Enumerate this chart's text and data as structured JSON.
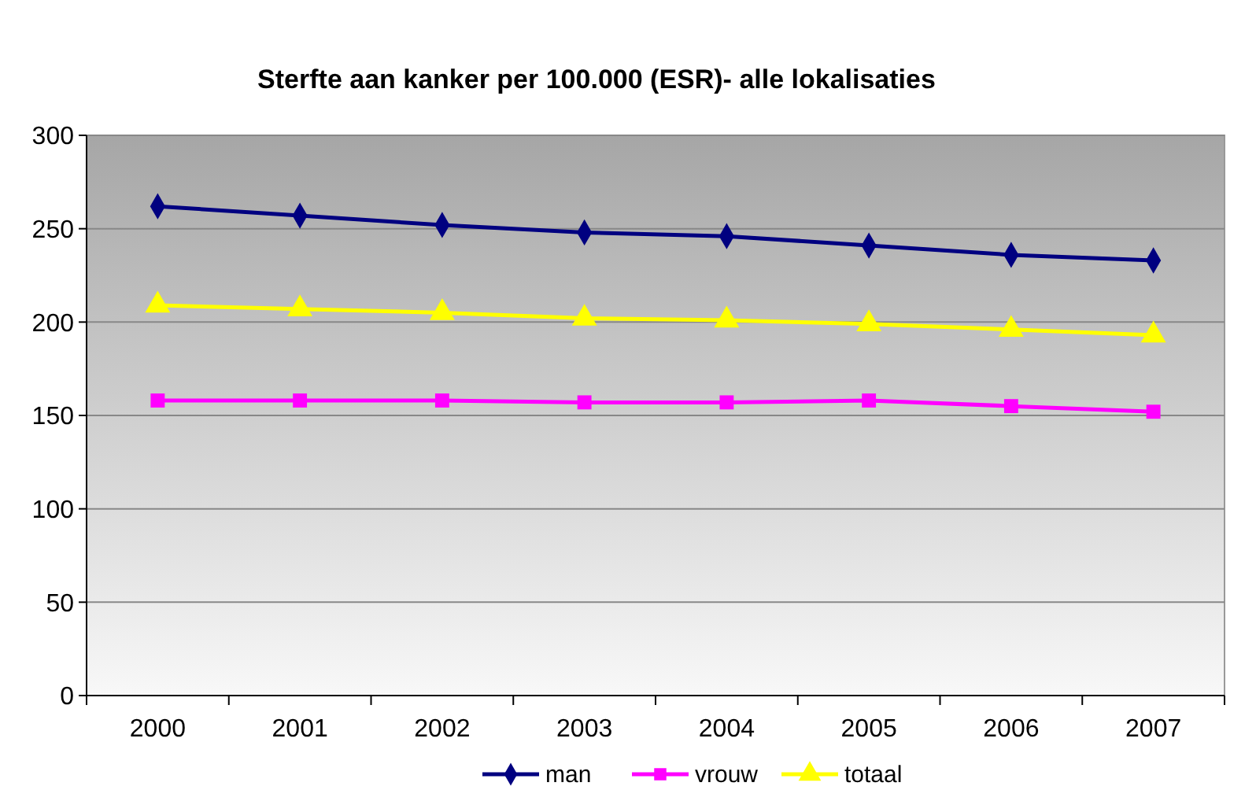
{
  "chart_data": {
    "type": "line",
    "title": "Sterfte aan kanker  per 100.000 (ESR)- alle lokalisaties",
    "categories": [
      "2000",
      "2001",
      "2002",
      "2003",
      "2004",
      "2005",
      "2006",
      "2007"
    ],
    "series": [
      {
        "name": "man",
        "color": "#000080",
        "marker": "diamond",
        "values": [
          262,
          257,
          252,
          248,
          246,
          241,
          236,
          233
        ]
      },
      {
        "name": "vrouw",
        "color": "#ff00ff",
        "marker": "square",
        "values": [
          158,
          158,
          158,
          157,
          157,
          158,
          155,
          152
        ]
      },
      {
        "name": "totaal",
        "color": "#ffff00",
        "marker": "triangle",
        "values": [
          209,
          207,
          205,
          202,
          201,
          199,
          196,
          193
        ]
      }
    ],
    "ylim": [
      0,
      300
    ],
    "yticks": [
      0,
      50,
      100,
      150,
      200,
      250,
      300
    ],
    "grid": "y",
    "legend": "bottom"
  }
}
